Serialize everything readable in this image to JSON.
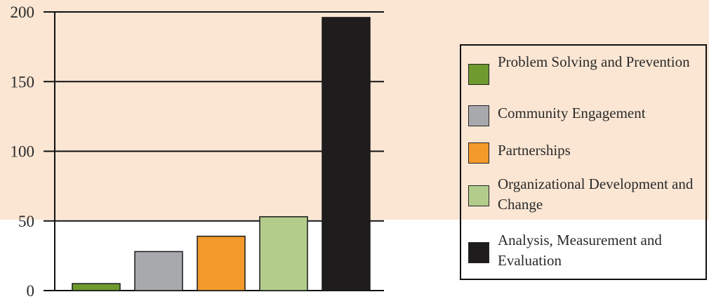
{
  "colors": {
    "band": "#fbe6d3",
    "background": "#ffffff",
    "axis": "#111111",
    "text": "#2a2a2a"
  },
  "chart_data": {
    "type": "bar",
    "title": "",
    "xlabel": "",
    "ylabel": "",
    "ylim": [
      0,
      200
    ],
    "yticks": [
      0,
      50,
      100,
      150,
      200
    ],
    "grid": true,
    "legend_position": "right",
    "categories": [
      "Problem Solving and Prevention",
      "Community Engagement",
      "Partnerships",
      "Organizational Development and Change",
      "Analysis, Measurement and Evaluation"
    ],
    "values": [
      5,
      28,
      39,
      53,
      196
    ],
    "bar_colors": [
      "#6e9a2e",
      "#a8a9ad",
      "#f39a2b",
      "#b3cc8c",
      "#1f1c1d"
    ]
  },
  "legend": {
    "items": [
      {
        "label": "Problem Solving and Prevention",
        "color": "#6e9a2e"
      },
      {
        "label": "Community Engagement",
        "color": "#a8a9ad"
      },
      {
        "label": "Partnerships",
        "color": "#f39a2b"
      },
      {
        "label": "Organizational Development and Change",
        "color": "#b3cc8c"
      },
      {
        "label": "Analysis, Measurement and Evaluation",
        "color": "#1f1c1d"
      }
    ]
  }
}
